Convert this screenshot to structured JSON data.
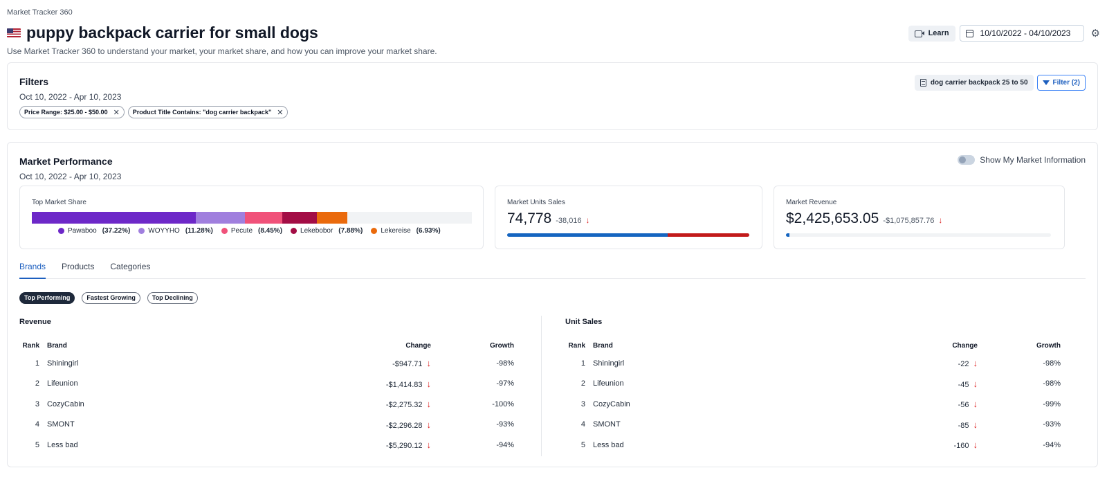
{
  "header": {
    "app_name": "Market Tracker 360",
    "flag_icon": "us-flag-icon",
    "title": "puppy backpack carrier for small dogs",
    "subtitle": "Use Market Tracker 360 to understand your market, your market share, and how you can improve your market share.",
    "learn_label": "Learn",
    "date_range": "10/10/2022 - 04/10/2023"
  },
  "filters": {
    "title": "Filters",
    "date_text": "Oct 10, 2022 - Apr 10, 2023",
    "chips": [
      {
        "label": "Price Range: $25.00 - $50.00"
      },
      {
        "label": "Product Title Contains: \"dog carrier backpack\""
      }
    ],
    "saved_filter_label": "dog carrier backpack 25 to 50",
    "filter_button_label": "Filter (2)"
  },
  "performance": {
    "title": "Market Performance",
    "date_text": "Oct 10, 2022 - Apr 10, 2023",
    "toggle_label": "Show My Market Information",
    "top_share": {
      "label": "Top Market Share",
      "brands": [
        {
          "name": "Pawaboo",
          "pct_text": "(37.22%)",
          "pct": 37.22,
          "color": "#6d28c8"
        },
        {
          "name": "WOYYHO",
          "pct_text": "(11.28%)",
          "pct": 11.28,
          "color": "#a07fde"
        },
        {
          "name": "Pecute",
          "pct_text": "(8.45%)",
          "pct": 8.45,
          "color": "#f0527a"
        },
        {
          "name": "Lekebobor",
          "pct_text": "(7.88%)",
          "pct": 7.88,
          "color": "#a30d45"
        },
        {
          "name": "Lekereise",
          "pct_text": "(6.93%)",
          "pct": 6.93,
          "color": "#ea6a0c"
        }
      ]
    },
    "units": {
      "label": "Market Units Sales",
      "value": "74,778",
      "delta": "-38,016",
      "bar_fraction_blue": 0.664
    },
    "revenue": {
      "label": "Market Revenue",
      "value": "$2,425,653.05",
      "delta": "-$1,075,857.76",
      "bar_fraction_blue": 0.014
    }
  },
  "tabs": [
    {
      "label": "Brands",
      "active": true
    },
    {
      "label": "Products",
      "active": false
    },
    {
      "label": "Categories",
      "active": false
    }
  ],
  "pills": [
    {
      "label": "Top Performing",
      "active": true
    },
    {
      "label": "Fastest Growing",
      "active": false
    },
    {
      "label": "Top Declining",
      "active": false
    }
  ],
  "revenue_table": {
    "title": "Revenue",
    "headers": {
      "rank": "Rank",
      "brand": "Brand",
      "change": "Change",
      "growth": "Growth"
    },
    "rows": [
      {
        "rank": "1",
        "brand": "Shiningirl",
        "change": "-$947.71",
        "growth": "-98%"
      },
      {
        "rank": "2",
        "brand": "Lifeunion",
        "change": "-$1,414.83",
        "growth": "-97%"
      },
      {
        "rank": "3",
        "brand": "CozyCabin",
        "change": "-$2,275.32",
        "growth": "-100%"
      },
      {
        "rank": "4",
        "brand": "SMONT",
        "change": "-$2,296.28",
        "growth": "-93%"
      },
      {
        "rank": "5",
        "brand": "Less bad",
        "change": "-$5,290.12",
        "growth": "-94%"
      }
    ]
  },
  "units_table": {
    "title": "Unit Sales",
    "headers": {
      "rank": "Rank",
      "brand": "Brand",
      "change": "Change",
      "growth": "Growth"
    },
    "rows": [
      {
        "rank": "1",
        "brand": "Shiningirl",
        "change": "-22",
        "growth": "-98%"
      },
      {
        "rank": "2",
        "brand": "Lifeunion",
        "change": "-45",
        "growth": "-98%"
      },
      {
        "rank": "3",
        "brand": "CozyCabin",
        "change": "-56",
        "growth": "-99%"
      },
      {
        "rank": "4",
        "brand": "SMONT",
        "change": "-85",
        "growth": "-93%"
      },
      {
        "rank": "5",
        "brand": "Less bad",
        "change": "-160",
        "growth": "-94%"
      }
    ]
  },
  "colors": {
    "accent": "#1d5fbf",
    "down": "#dc2626",
    "units_blue": "#1565c0",
    "units_red": "#c21a1a"
  }
}
